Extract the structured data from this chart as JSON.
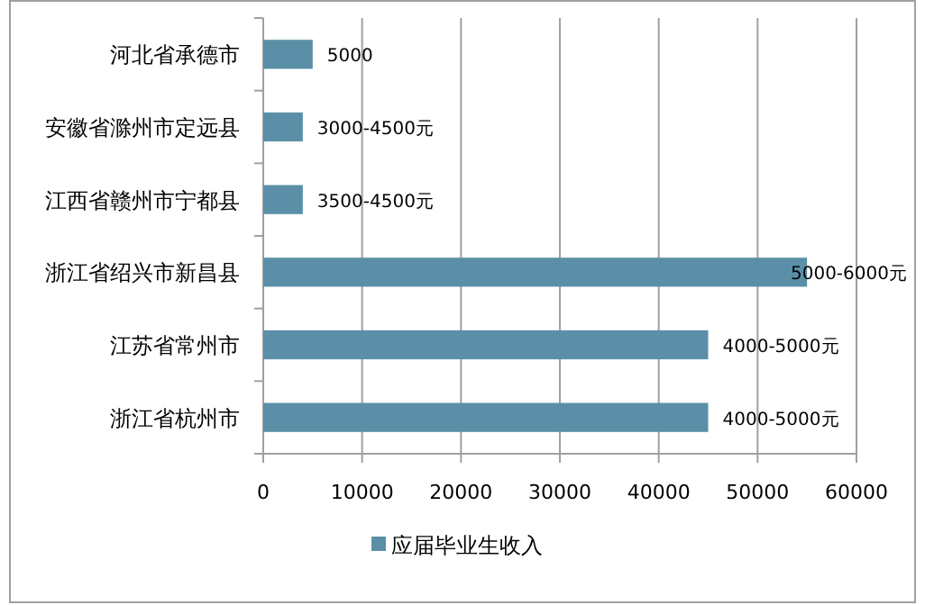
{
  "chart_data": {
    "type": "bar",
    "orientation": "horizontal",
    "categories": [
      "河北省承德市",
      "安徽省滁州市定远县",
      "江西省赣州市宁都县",
      "浙江省绍兴市新昌县",
      "江苏省常州市",
      "浙江省杭州市"
    ],
    "series": [
      {
        "name": "应届毕业生收入",
        "color": "#5b8fa8",
        "values": [
          5000,
          4000,
          4000,
          55000,
          45000,
          45000
        ],
        "value_labels": [
          "5000",
          "3000-4500元",
          "3500-4500元",
          "5000-6000元",
          "4000-5000元",
          "4000-5000元"
        ]
      }
    ],
    "xlim": [
      0,
      60000
    ],
    "xticks": [
      0,
      10000,
      20000,
      30000,
      40000,
      50000,
      60000
    ],
    "grid": "x",
    "legend": "bottom"
  }
}
